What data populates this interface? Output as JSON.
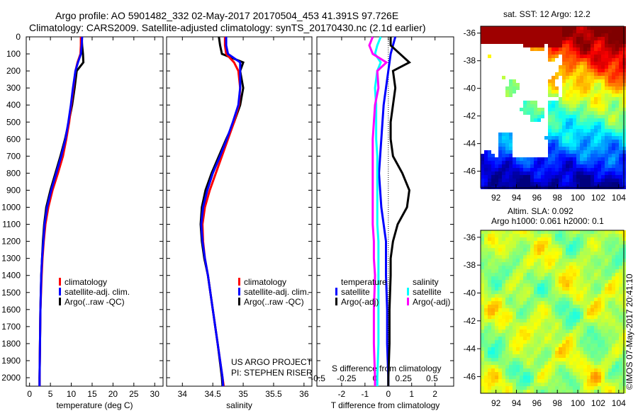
{
  "header": {
    "line1": "Argo profile: AO 5901482_332 02-May-2017 20170504_453 41.391S 97.726E",
    "line2": "Climatology: CARS2009. Satellite-adjusted climatology: synTS_20170430.nc (2.1d earlier)"
  },
  "credit": {
    "line1": "US ARGO PROJECT",
    "line2": "PI: STEPHEN RISER"
  },
  "copyright": "©IMOS 07-May-2017 20:41:10",
  "colors": {
    "climatology": "#ff0000",
    "satellite": "#0000ff",
    "argo": "#000000",
    "sal_satellite": "#00ffff",
    "sal_argo": "#ff00ff"
  },
  "chart_data": [
    {
      "type": "line",
      "xlabel": "temperature (deg C)",
      "xlim": [
        -0.8,
        32
      ],
      "ylim": [
        2050,
        0
      ],
      "xticks": [
        0,
        5,
        10,
        15,
        20,
        25,
        30
      ],
      "yticks": [
        0,
        100,
        200,
        300,
        400,
        500,
        600,
        700,
        800,
        900,
        1000,
        1100,
        1200,
        1300,
        1400,
        1500,
        1600,
        1700,
        1800,
        1900,
        2000
      ],
      "legend": [
        "climatology",
        "satellite-adj. clim.",
        "Argo(..raw -QC)"
      ],
      "depth": [
        0,
        50,
        100,
        150,
        200,
        300,
        400,
        500,
        600,
        700,
        800,
        900,
        1000,
        1100,
        1200,
        1300,
        1400,
        1600,
        1800,
        2000,
        2050
      ],
      "series": [
        {
          "name": "climatology",
          "values": [
            12.3,
            12.3,
            12.2,
            11.5,
            11.0,
            10.5,
            10.0,
            9.5,
            8.8,
            8.0,
            6.8,
            5.5,
            4.5,
            3.8,
            3.4,
            3.1,
            2.9,
            2.6,
            2.5,
            2.4,
            2.4
          ]
        },
        {
          "name": "satellite-adj. clim.",
          "values": [
            12.6,
            12.5,
            12.3,
            11.6,
            11.0,
            10.4,
            9.9,
            9.3,
            8.6,
            7.6,
            6.4,
            5.2,
            4.2,
            3.6,
            3.3,
            3.0,
            2.8,
            2.6,
            2.5,
            2.4,
            2.4
          ]
        },
        {
          "name": "Argo(..raw -QC)",
          "values": [
            12.5,
            12.6,
            12.8,
            12.9,
            11.3,
            10.8,
            10.2,
            9.4,
            8.5,
            7.4,
            6.2,
            5.0,
            4.0,
            3.5,
            3.2,
            3.0,
            2.8,
            2.6,
            2.5,
            2.4,
            2.4
          ]
        }
      ]
    },
    {
      "type": "line",
      "xlabel": "salinity",
      "xlim": [
        33.74,
        36.13
      ],
      "ylim": [
        2050,
        0
      ],
      "xticks": [
        34,
        34.5,
        35,
        35.5,
        36
      ],
      "legend": [
        "climatology",
        "satellite-adj. clim.",
        "Argo(..raw -QC)"
      ],
      "depth": [
        0,
        50,
        100,
        150,
        200,
        300,
        400,
        500,
        600,
        700,
        800,
        900,
        1000,
        1100,
        1200,
        1300,
        1400,
        1600,
        1800,
        2000,
        2050
      ],
      "series": [
        {
          "name": "climatology",
          "values": [
            34.7,
            34.7,
            34.72,
            34.85,
            34.92,
            34.95,
            34.93,
            34.85,
            34.75,
            34.65,
            34.55,
            34.45,
            34.37,
            34.33,
            34.34,
            34.37,
            34.42,
            34.5,
            34.58,
            34.66,
            34.68
          ]
        },
        {
          "name": "satellite-adj. clim.",
          "values": [
            34.72,
            34.72,
            34.75,
            34.95,
            34.95,
            34.95,
            34.92,
            34.83,
            34.73,
            34.62,
            34.5,
            34.41,
            34.34,
            34.31,
            34.33,
            34.37,
            34.42,
            34.5,
            34.58,
            34.66,
            34.67
          ]
        },
        {
          "name": "Argo(..raw -QC)",
          "values": [
            34.6,
            34.62,
            34.65,
            35.0,
            34.95,
            35.0,
            34.95,
            34.85,
            34.72,
            34.6,
            34.48,
            34.38,
            34.32,
            34.3,
            34.32,
            34.36,
            34.42,
            34.5,
            34.58,
            34.65,
            34.66
          ]
        }
      ]
    },
    {
      "type": "line",
      "xlabel": "T difference from climatology",
      "x2label": "S difference from climatology",
      "xlim": [
        -3.06,
        2.8
      ],
      "x2lim": [
        -0.51,
        0.69
      ],
      "ylim": [
        2050,
        0
      ],
      "xticks": [
        -2,
        -1,
        0,
        1,
        2
      ],
      "x2ticks": [
        "-0.5",
        "-0.25",
        "0",
        "0.25",
        "0.5"
      ],
      "legend_titles": [
        "temperature",
        "salinity"
      ],
      "legend": [
        "satellite",
        "Argo(-adj)",
        "satellite",
        "Argo(-adj)"
      ],
      "depth": [
        0,
        50,
        100,
        150,
        200,
        300,
        400,
        500,
        600,
        700,
        800,
        900,
        1000,
        1100,
        1200,
        1300,
        1400,
        1600,
        1800,
        2000,
        2050
      ],
      "series": [
        {
          "name": "temperature satellite",
          "axis": "T",
          "values": [
            0.3,
            0.2,
            0.1,
            0.05,
            0,
            -0.1,
            -0.2,
            -0.25,
            -0.3,
            -0.35,
            -0.4,
            -0.35,
            -0.3,
            -0.2,
            -0.1,
            -0.1,
            -0.1,
            -0.05,
            -0.05,
            0,
            0
          ]
        },
        {
          "name": "temperature Argo(-adj)",
          "axis": "T",
          "values": [
            0.1,
            0.1,
            0.5,
            0.9,
            0.2,
            0.3,
            0.2,
            0.1,
            0.1,
            0.2,
            0.6,
            0.9,
            0.8,
            0.4,
            0.2,
            0.1,
            0.1,
            0.05,
            0.05,
            0,
            0
          ]
        },
        {
          "name": "salinity satellite",
          "axis": "S",
          "values": [
            0.05,
            0.02,
            0.0,
            0.05,
            0.02,
            0.0,
            0.01,
            0.01,
            0.01,
            0.02,
            0.02,
            0.02,
            0.02,
            0.02,
            0.03,
            0.03,
            0.03,
            0.03,
            0.03,
            0.02,
            0.02
          ]
        },
        {
          "name": "salinity Argo(-adj)",
          "axis": "S",
          "values": [
            -0.02,
            -0.05,
            -0.02,
            0.1,
            0.02,
            0.03,
            0.0,
            -0.01,
            -0.02,
            -0.02,
            -0.02,
            -0.02,
            -0.02,
            -0.02,
            -0.01,
            -0.01,
            0.0,
            -0.01,
            -0.01,
            0.0,
            0.0
          ]
        }
      ]
    },
    {
      "type": "heatmap",
      "title": "sat. SST: 12 Argo: 12.2",
      "xlim": [
        90.5,
        104.5
      ],
      "ylim": [
        -47.2,
        -35.5
      ],
      "xticks": [
        92,
        94,
        96,
        98,
        100,
        102,
        104
      ],
      "yticks": [
        -36,
        -38,
        -40,
        -42,
        -44,
        -46
      ]
    },
    {
      "type": "heatmap",
      "title1": "Altim. SLA: 0.092",
      "title2": "Argo h1000: 0.061 h2000: 0.1",
      "xlim": [
        90.5,
        104.5
      ],
      "ylim": [
        -47.2,
        -35.5
      ],
      "xticks": [
        92,
        94,
        96,
        98,
        100,
        102,
        104
      ],
      "yticks": [
        -36,
        -38,
        -40,
        -42,
        -44,
        -46
      ]
    }
  ]
}
